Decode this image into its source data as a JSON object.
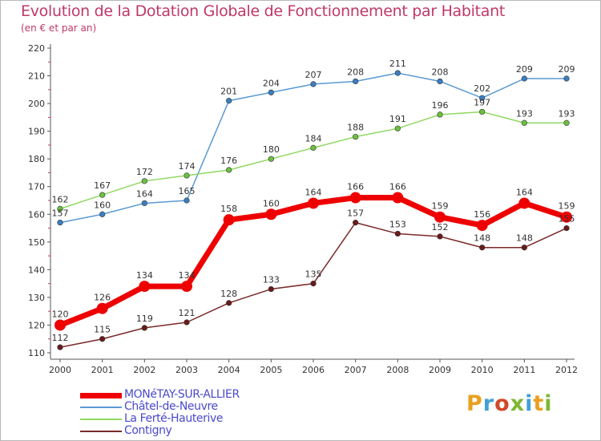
{
  "header": {
    "title": "Evolution de la Dotation Globale de Fonctionnement par Habitant",
    "subtitle": "(en € et par an)"
  },
  "logo": {
    "text": "Proxiti",
    "letters": [
      "P",
      "r",
      "o",
      "x",
      "i",
      "t",
      "i"
    ],
    "letter_colors": [
      "#e9a020",
      "#3fa0d8",
      "#d04a2a",
      "#7cb832",
      "#3fa0d8",
      "#e9a020",
      "#7cb832"
    ]
  },
  "chart_data": {
    "type": "line",
    "title": "Evolution de la Dotation Globale de Fonctionnement par Habitant",
    "subtitle": "(en € et par an)",
    "x": [
      "2000",
      "2001",
      "2002",
      "2003",
      "2004",
      "2005",
      "2006",
      "2007",
      "2008",
      "2009",
      "2010",
      "2011",
      "2012"
    ],
    "ylim": [
      110,
      220
    ],
    "yticks": [
      110,
      120,
      130,
      140,
      150,
      160,
      170,
      180,
      190,
      200,
      210,
      220
    ],
    "grid": false,
    "legend_position": "bottom-left",
    "series": [
      {
        "name": "Châtel-de-Neuvre",
        "color": "#5a9ad2",
        "marker": "#3b7fc2",
        "values": [
          157,
          160,
          164,
          165,
          201,
          204,
          207,
          208,
          211,
          208,
          202,
          209,
          209
        ]
      },
      {
        "name": "La Ferté-Hauterive",
        "color": "#90d860",
        "marker": "#6cc040",
        "values": [
          162,
          167,
          172,
          174,
          176,
          180,
          184,
          188,
          191,
          196,
          197,
          193,
          193
        ]
      },
      {
        "name": "Contigny",
        "color": "#7a2a2a",
        "marker": "#6a1a1a",
        "values": [
          112,
          115,
          119,
          121,
          128,
          133,
          135,
          157,
          153,
          152,
          148,
          148,
          155
        ]
      },
      {
        "name": "MONéTAY-SUR-ALLIER",
        "color": "#ee0000",
        "marker": "#ee0000",
        "values": [
          120,
          126,
          134,
          134,
          158,
          160,
          164,
          166,
          166,
          159,
          156,
          164,
          159
        ]
      }
    ],
    "legend": [
      "MONéTAY-SUR-ALLIER",
      "Châtel-de-Neuvre",
      "La Ferté-Hauterive",
      "Contigny"
    ]
  }
}
